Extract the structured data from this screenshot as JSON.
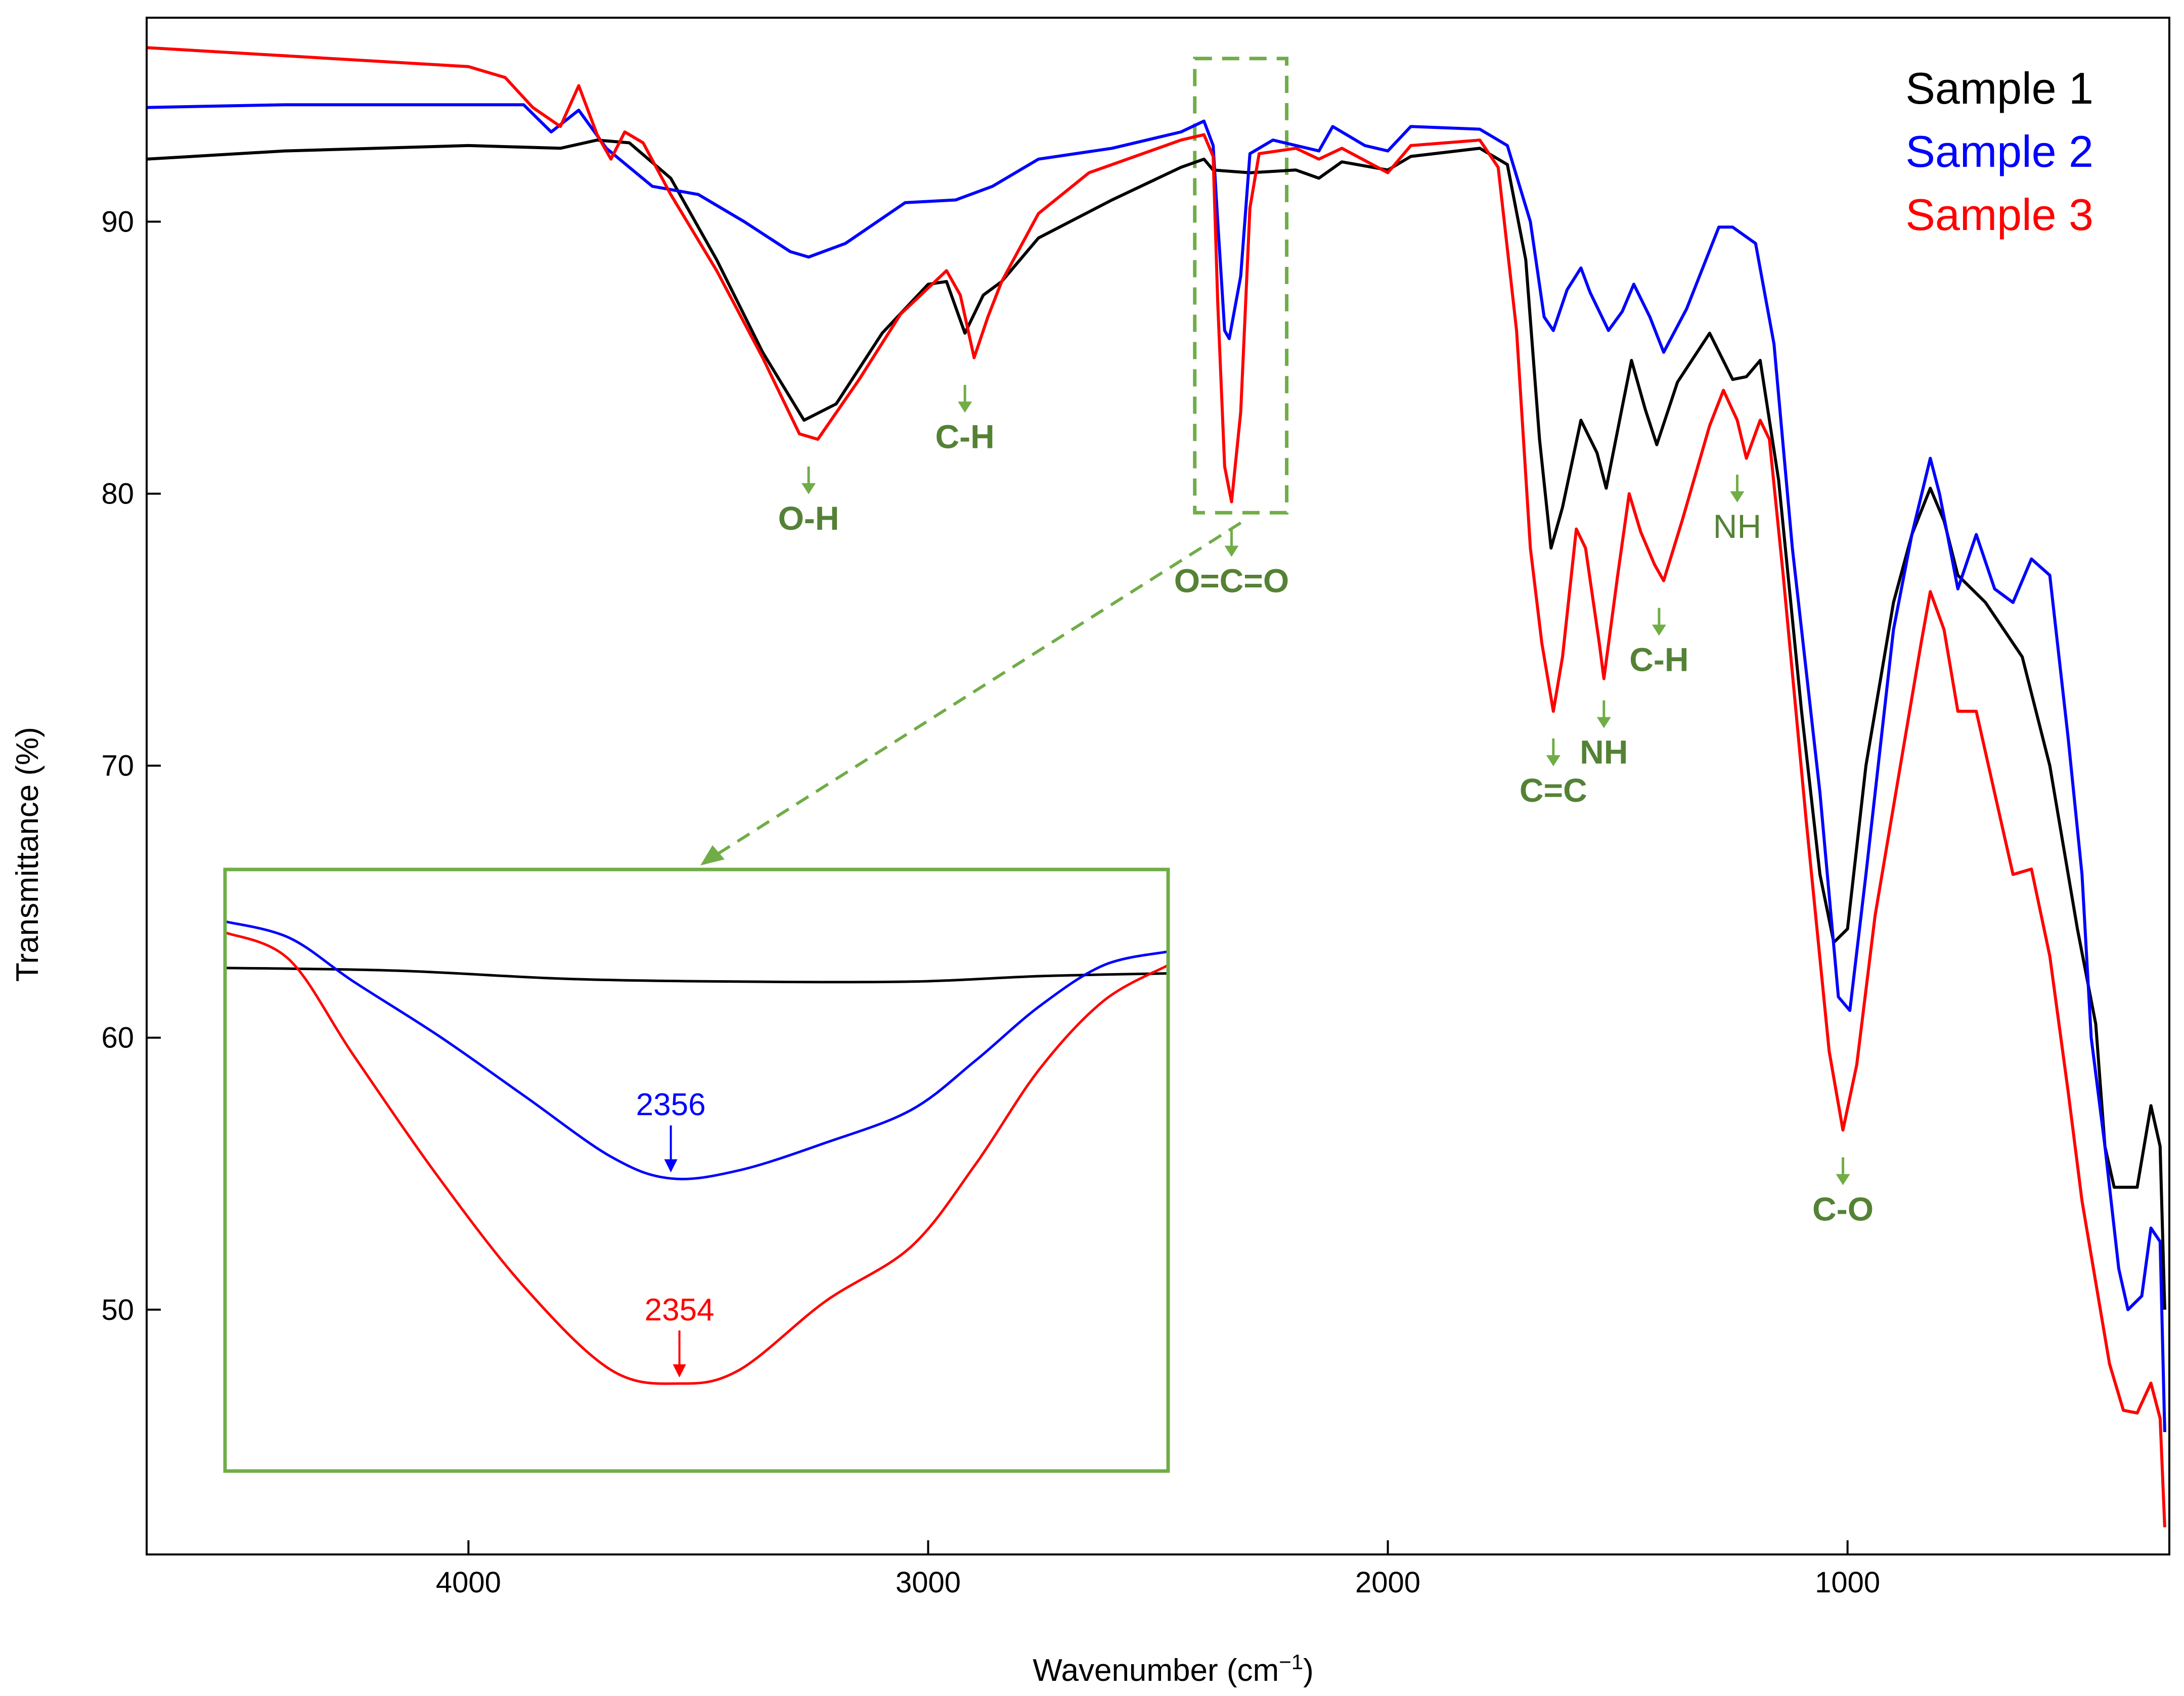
{
  "chart_data": {
    "type": "line",
    "title": "",
    "xlabel_main": "Wavenumber (cm",
    "xlabel_sup": "−1",
    "xlabel_close": ")",
    "ylabel": "Transmittance (%)",
    "xlim": [
      4700,
      300
    ],
    "ylim": [
      41,
      97.5
    ],
    "x_ticks": [
      4000,
      3000,
      2000,
      1000
    ],
    "y_ticks": [
      90,
      80,
      70,
      60,
      50
    ],
    "grid": false,
    "legend_position": "top-right",
    "series": [
      {
        "name": "Sample 1",
        "color": "#000000",
        "points": [
          [
            4700,
            92.3
          ],
          [
            4400,
            92.6
          ],
          [
            4000,
            92.8
          ],
          [
            3800,
            92.7
          ],
          [
            3720,
            93.0
          ],
          [
            3650,
            92.9
          ],
          [
            3560,
            91.6
          ],
          [
            3460,
            88.6
          ],
          [
            3360,
            85.2
          ],
          [
            3270,
            82.7
          ],
          [
            3200,
            83.3
          ],
          [
            3100,
            85.9
          ],
          [
            3000,
            87.7
          ],
          [
            2960,
            87.8
          ],
          [
            2920,
            85.9
          ],
          [
            2880,
            87.3
          ],
          [
            2840,
            87.8
          ],
          [
            2760,
            89.4
          ],
          [
            2600,
            90.8
          ],
          [
            2450,
            92.0
          ],
          [
            2400,
            92.3
          ],
          [
            2380,
            91.9
          ],
          [
            2300,
            91.8
          ],
          [
            2200,
            91.9
          ],
          [
            2150,
            91.6
          ],
          [
            2100,
            92.2
          ],
          [
            2000,
            91.9
          ],
          [
            1950,
            92.4
          ],
          [
            1800,
            92.7
          ],
          [
            1740,
            92.1
          ],
          [
            1700,
            88.6
          ],
          [
            1670,
            82.0
          ],
          [
            1645,
            78.0
          ],
          [
            1620,
            79.5
          ],
          [
            1580,
            82.7
          ],
          [
            1545,
            81.5
          ],
          [
            1525,
            80.2
          ],
          [
            1490,
            83.2
          ],
          [
            1470,
            84.9
          ],
          [
            1440,
            83.1
          ],
          [
            1415,
            81.8
          ],
          [
            1370,
            84.1
          ],
          [
            1300,
            85.9
          ],
          [
            1250,
            84.2
          ],
          [
            1220,
            84.3
          ],
          [
            1190,
            84.9
          ],
          [
            1150,
            80.5
          ],
          [
            1100,
            72.0
          ],
          [
            1060,
            66.0
          ],
          [
            1030,
            63.5
          ],
          [
            1000,
            64.0
          ],
          [
            960,
            70.0
          ],
          [
            900,
            76.0
          ],
          [
            860,
            78.5
          ],
          [
            820,
            80.2
          ],
          [
            790,
            79.0
          ],
          [
            760,
            77.0
          ],
          [
            700,
            76.0
          ],
          [
            620,
            74.0
          ],
          [
            560,
            70.0
          ],
          [
            500,
            64.0
          ],
          [
            460,
            60.5
          ],
          [
            440,
            56.0
          ],
          [
            420,
            54.5
          ],
          [
            370,
            54.5
          ],
          [
            340,
            57.5
          ],
          [
            320,
            56.0
          ],
          [
            310,
            50.0
          ]
        ]
      },
      {
        "name": "Sample 2",
        "color": "#0000ff",
        "points": [
          [
            4700,
            94.2
          ],
          [
            4400,
            94.3
          ],
          [
            4000,
            94.3
          ],
          [
            3880,
            94.3
          ],
          [
            3820,
            93.3
          ],
          [
            3760,
            94.1
          ],
          [
            3700,
            92.7
          ],
          [
            3600,
            91.3
          ],
          [
            3500,
            91.0
          ],
          [
            3400,
            90.0
          ],
          [
            3300,
            88.9
          ],
          [
            3260,
            88.7
          ],
          [
            3180,
            89.2
          ],
          [
            3050,
            90.7
          ],
          [
            2940,
            90.8
          ],
          [
            2860,
            91.3
          ],
          [
            2760,
            92.3
          ],
          [
            2600,
            92.7
          ],
          [
            2450,
            93.3
          ],
          [
            2400,
            93.7
          ],
          [
            2380,
            92.8
          ],
          [
            2370,
            90.0
          ],
          [
            2355,
            86.0
          ],
          [
            2345,
            85.7
          ],
          [
            2320,
            88.0
          ],
          [
            2300,
            92.5
          ],
          [
            2250,
            93.0
          ],
          [
            2150,
            92.6
          ],
          [
            2120,
            93.5
          ],
          [
            2050,
            92.8
          ],
          [
            2000,
            92.6
          ],
          [
            1950,
            93.5
          ],
          [
            1800,
            93.4
          ],
          [
            1740,
            92.8
          ],
          [
            1690,
            90.0
          ],
          [
            1660,
            86.5
          ],
          [
            1640,
            86.0
          ],
          [
            1610,
            87.5
          ],
          [
            1580,
            88.3
          ],
          [
            1560,
            87.4
          ],
          [
            1520,
            86.0
          ],
          [
            1490,
            86.7
          ],
          [
            1465,
            87.7
          ],
          [
            1430,
            86.5
          ],
          [
            1400,
            85.2
          ],
          [
            1350,
            86.8
          ],
          [
            1280,
            89.8
          ],
          [
            1250,
            89.8
          ],
          [
            1200,
            89.2
          ],
          [
            1160,
            85.5
          ],
          [
            1120,
            78.0
          ],
          [
            1060,
            69.0
          ],
          [
            1020,
            61.5
          ],
          [
            995,
            61.0
          ],
          [
            960,
            66.0
          ],
          [
            900,
            75.0
          ],
          [
            860,
            78.5
          ],
          [
            820,
            81.3
          ],
          [
            800,
            80.0
          ],
          [
            760,
            76.5
          ],
          [
            720,
            78.5
          ],
          [
            680,
            76.5
          ],
          [
            640,
            76.0
          ],
          [
            600,
            77.6
          ],
          [
            560,
            77.0
          ],
          [
            520,
            71.0
          ],
          [
            490,
            66.0
          ],
          [
            470,
            60.0
          ],
          [
            440,
            56.0
          ],
          [
            410,
            51.5
          ],
          [
            390,
            50.0
          ],
          [
            360,
            50.5
          ],
          [
            340,
            53.0
          ],
          [
            320,
            52.5
          ],
          [
            310,
            45.5
          ]
        ]
      },
      {
        "name": "Sample 3",
        "color": "#ff0000",
        "points": [
          [
            4700,
            96.4
          ],
          [
            4400,
            96.1
          ],
          [
            4000,
            95.7
          ],
          [
            3920,
            95.3
          ],
          [
            3860,
            94.2
          ],
          [
            3800,
            93.5
          ],
          [
            3760,
            95.0
          ],
          [
            3720,
            93.2
          ],
          [
            3690,
            92.3
          ],
          [
            3660,
            93.3
          ],
          [
            3620,
            92.9
          ],
          [
            3560,
            91.0
          ],
          [
            3460,
            88.2
          ],
          [
            3360,
            85.0
          ],
          [
            3280,
            82.2
          ],
          [
            3240,
            82.0
          ],
          [
            3150,
            84.2
          ],
          [
            3060,
            86.6
          ],
          [
            2960,
            88.2
          ],
          [
            2930,
            87.3
          ],
          [
            2900,
            85.0
          ],
          [
            2870,
            86.5
          ],
          [
            2840,
            87.8
          ],
          [
            2760,
            90.3
          ],
          [
            2650,
            91.8
          ],
          [
            2450,
            93.0
          ],
          [
            2400,
            93.2
          ],
          [
            2380,
            92.4
          ],
          [
            2370,
            87.0
          ],
          [
            2355,
            81.0
          ],
          [
            2340,
            79.7
          ],
          [
            2320,
            83.0
          ],
          [
            2300,
            90.5
          ],
          [
            2280,
            92.5
          ],
          [
            2200,
            92.7
          ],
          [
            2150,
            92.3
          ],
          [
            2100,
            92.7
          ],
          [
            2000,
            91.8
          ],
          [
            1950,
            92.8
          ],
          [
            1800,
            93.0
          ],
          [
            1760,
            92.0
          ],
          [
            1720,
            86.0
          ],
          [
            1690,
            78.0
          ],
          [
            1665,
            74.5
          ],
          [
            1640,
            72.0
          ],
          [
            1620,
            74.0
          ],
          [
            1590,
            78.7
          ],
          [
            1570,
            78.0
          ],
          [
            1540,
            74.5
          ],
          [
            1530,
            73.2
          ],
          [
            1500,
            77.0
          ],
          [
            1475,
            80.0
          ],
          [
            1450,
            78.6
          ],
          [
            1420,
            77.4
          ],
          [
            1400,
            76.8
          ],
          [
            1360,
            79.0
          ],
          [
            1300,
            82.5
          ],
          [
            1270,
            83.8
          ],
          [
            1240,
            82.7
          ],
          [
            1220,
            81.3
          ],
          [
            1190,
            82.7
          ],
          [
            1170,
            82.0
          ],
          [
            1140,
            77.0
          ],
          [
            1090,
            68.0
          ],
          [
            1040,
            59.5
          ],
          [
            1010,
            56.6
          ],
          [
            980,
            59.0
          ],
          [
            940,
            64.5
          ],
          [
            880,
            70.5
          ],
          [
            840,
            74.5
          ],
          [
            820,
            76.4
          ],
          [
            790,
            75.0
          ],
          [
            760,
            72.0
          ],
          [
            720,
            72.0
          ],
          [
            680,
            69.0
          ],
          [
            640,
            66.0
          ],
          [
            600,
            66.2
          ],
          [
            560,
            63.0
          ],
          [
            520,
            58.0
          ],
          [
            490,
            54.0
          ],
          [
            460,
            51.0
          ],
          [
            430,
            48.0
          ],
          [
            400,
            46.3
          ],
          [
            370,
            46.2
          ],
          [
            340,
            47.3
          ],
          [
            320,
            46.0
          ],
          [
            310,
            42.0
          ]
        ]
      }
    ],
    "annotations": [
      {
        "text": "O-H",
        "x": 3260,
        "y": 81.0,
        "style": "bold"
      },
      {
        "text": "C-H",
        "x": 2920,
        "y": 84.0,
        "style": "bold"
      },
      {
        "text": "O=C=O",
        "x": 2340,
        "y": 78.7,
        "style": "bold"
      },
      {
        "text": "C=C",
        "x": 1640,
        "y": 71.0,
        "style": "bold"
      },
      {
        "text": "NH",
        "x": 1530,
        "y": 72.4,
        "style": "bold"
      },
      {
        "text": "C-H",
        "x": 1410,
        "y": 75.8,
        "style": "bold"
      },
      {
        "text": "NH",
        "x": 1240,
        "y": 80.7,
        "style": "light"
      },
      {
        "text": "C-O",
        "x": 1010,
        "y": 55.6,
        "style": "bold"
      }
    ],
    "annotation_color": "#70ad47",
    "label_color": "#548235",
    "zoom_box": {
      "x_range": [
        2420,
        2220
      ],
      "y_range": [
        79.3,
        96.0
      ]
    },
    "inset": {
      "x_range": [
        2460,
        2240
      ],
      "y_range": [
        44.3,
        66.3
      ],
      "series": [
        {
          "name": "Sample 1",
          "color": "#000000",
          "points": [
            [
              2460,
              62.7
            ],
            [
              2420,
              62.6
            ],
            [
              2380,
              62.3
            ],
            [
              2340,
              62.2
            ],
            [
              2300,
              62.2
            ],
            [
              2270,
              62.4
            ],
            [
              2240,
              62.5
            ]
          ]
        },
        {
          "name": "Sample 2",
          "color": "#0000ff",
          "points": [
            [
              2460,
              64.4
            ],
            [
              2445,
              63.8
            ],
            [
              2430,
              62.2
            ],
            [
              2410,
              60.2
            ],
            [
              2390,
              58.0
            ],
            [
              2370,
              55.8
            ],
            [
              2356,
              55.0
            ],
            [
              2340,
              55.3
            ],
            [
              2320,
              56.3
            ],
            [
              2300,
              57.5
            ],
            [
              2285,
              59.3
            ],
            [
              2270,
              61.3
            ],
            [
              2255,
              62.8
            ],
            [
              2240,
              63.3
            ]
          ]
        },
        {
          "name": "Sample 3",
          "color": "#ff0000",
          "points": [
            [
              2460,
              64.0
            ],
            [
              2445,
              63.0
            ],
            [
              2430,
              59.5
            ],
            [
              2410,
              55.0
            ],
            [
              2390,
              51.0
            ],
            [
              2370,
              48.0
            ],
            [
              2354,
              47.5
            ],
            [
              2340,
              48.0
            ],
            [
              2320,
              50.5
            ],
            [
              2300,
              52.5
            ],
            [
              2285,
              55.5
            ],
            [
              2270,
              59.0
            ],
            [
              2255,
              61.5
            ],
            [
              2240,
              62.8
            ]
          ]
        }
      ],
      "labels": [
        {
          "text": "2356",
          "x": 2356,
          "y": 55.0,
          "color": "#0000ff"
        },
        {
          "text": "2354",
          "x": 2354,
          "y": 47.5,
          "color": "#ff0000"
        }
      ]
    }
  }
}
